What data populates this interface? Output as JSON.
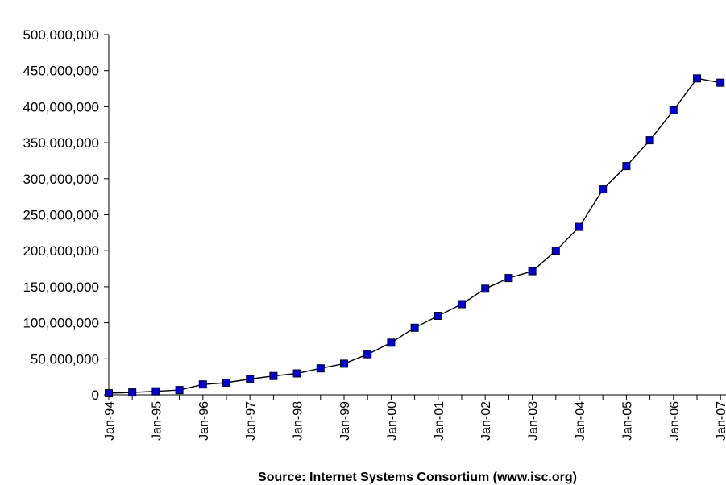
{
  "chart_data": {
    "type": "line",
    "title": "",
    "xlabel": "Source: Internet Systems Consortium (www.isc.org)",
    "ylabel": "",
    "ylim": [
      0,
      500000000
    ],
    "y_ticks": [
      "0",
      "50,000,000",
      "100,000,000",
      "150,000,000",
      "200,000,000",
      "250,000,000",
      "300,000,000",
      "350,000,000",
      "400,000,000",
      "450,000,000",
      "500,000,000"
    ],
    "x_ticks": [
      "Jan-94",
      "Jan-95",
      "Jan-96",
      "Jan-97",
      "Jan-98",
      "Jan-99",
      "Jan-00",
      "Jan-01",
      "Jan-02",
      "Jan-03",
      "Jan-04",
      "Jan-05",
      "Jan-06",
      "Jan-07"
    ],
    "x": [
      "Jan-94",
      "Jul-94",
      "Jan-95",
      "Jul-95",
      "Jan-96",
      "Jul-96",
      "Jan-97",
      "Jul-97",
      "Jan-98",
      "Jul-98",
      "Jan-99",
      "Jul-99",
      "Jan-00",
      "Jul-00",
      "Jan-01",
      "Jul-01",
      "Jan-02",
      "Jul-02",
      "Jan-03",
      "Jul-03",
      "Jan-04",
      "Jul-04",
      "Jan-05",
      "Jul-05",
      "Jan-06",
      "Jul-06",
      "Jan-07"
    ],
    "series": [
      {
        "values": [
          2200000,
          3200000,
          4850000,
          6640000,
          14350000,
          16730000,
          21820000,
          26050000,
          29670000,
          36740000,
          43230000,
          56220000,
          72400000,
          93050000,
          109570000,
          125890000,
          147340000,
          162130000,
          171640000,
          200000000,
          233100000,
          285100000,
          317600000,
          353300000,
          394990000,
          439300000,
          433200000
        ],
        "color": "#000000",
        "marker_color": "#0000cc"
      }
    ],
    "grid": false,
    "legend": "none"
  }
}
